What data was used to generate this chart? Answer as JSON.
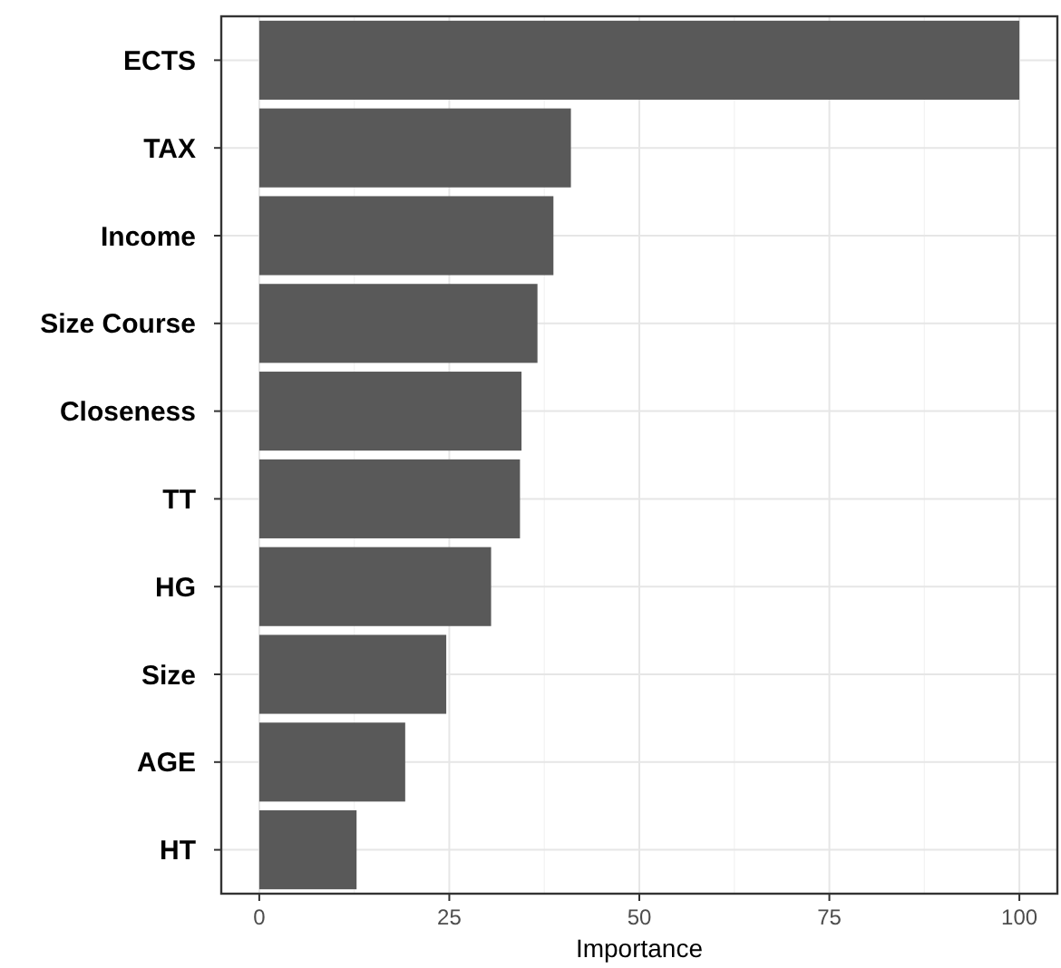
{
  "chart_data": {
    "type": "bar",
    "orientation": "horizontal",
    "xlabel": "Importance",
    "categories": [
      "ECTS",
      "TAX",
      "Income",
      "Size Course",
      "Closeness",
      "TT",
      "HG",
      "Size",
      "AGE",
      "HT"
    ],
    "values": [
      100,
      41.0,
      38.7,
      36.6,
      34.5,
      34.3,
      30.5,
      24.6,
      19.2,
      12.8
    ],
    "color": "#595959",
    "xlim": [
      -5,
      105
    ],
    "xticks": [
      0,
      {
        "value": 12.5,
        "label": null
      },
      25,
      {
        "value": 37.5,
        "label": null
      },
      50,
      {
        "value": 62.5,
        "label": null
      },
      75,
      {
        "value": 87.5,
        "label": null
      },
      100
    ],
    "grid": true
  }
}
